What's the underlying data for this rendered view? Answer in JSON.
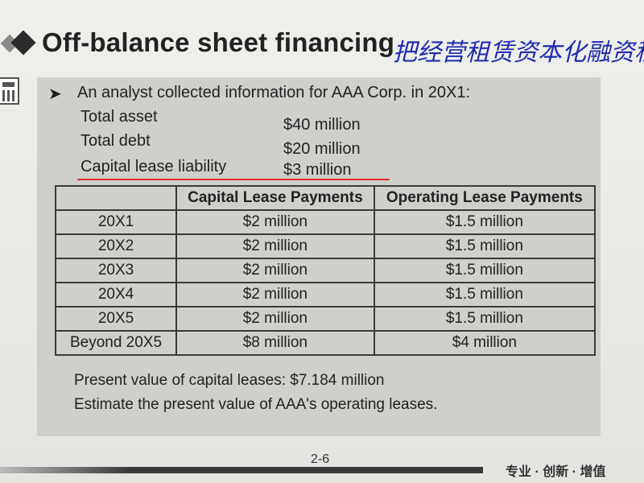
{
  "title": "Off-balance sheet financing",
  "handwritten_note": "把经营租赁资本化融资租",
  "bullet_symbol": "➤",
  "intro": "An analyst collected information for AAA Corp. in 20X1:",
  "info": [
    {
      "label": "Total asset",
      "value": "$40 million"
    },
    {
      "label": "Total debt",
      "value": "$20 million"
    },
    {
      "label": "Capital lease liability",
      "value": "$3 million"
    }
  ],
  "table": {
    "headers": [
      "",
      "Capital Lease Payments",
      "Operating Lease Payments"
    ],
    "rows": [
      [
        "20X1",
        "$2 million",
        "$1.5 million"
      ],
      [
        "20X2",
        "$2 million",
        "$1.5 million"
      ],
      [
        "20X3",
        "$2 million",
        "$1.5 million"
      ],
      [
        "20X4",
        "$2 million",
        "$1.5 million"
      ],
      [
        "20X5",
        "$2 million",
        "$1.5 million"
      ],
      [
        "Beyond 20X5",
        "$8 million",
        "$4 million"
      ]
    ]
  },
  "footer": [
    "Present value of capital leases: $7.184 million",
    "Estimate the present value of AAA's operating leases."
  ],
  "page_number": "2-6",
  "slogan": "专业 · 创新 · 增值",
  "colors": {
    "underline": "#e02d2d",
    "handwriting": "#1f2bb0"
  }
}
